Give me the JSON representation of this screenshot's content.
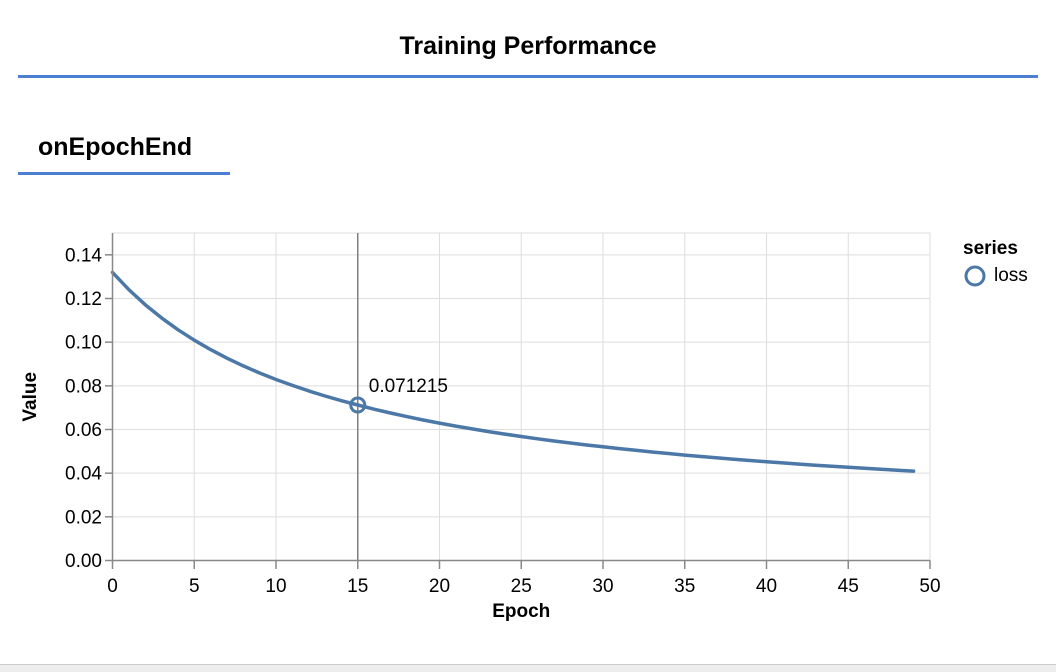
{
  "page": {
    "title": "Training Performance",
    "section_title": "onEpochEnd",
    "accent_color": "#4a7fd3"
  },
  "legend": {
    "title": "series",
    "items": [
      {
        "label": "loss",
        "color": "#4c78a8"
      }
    ]
  },
  "chart_data": {
    "type": "line",
    "xlabel": "Epoch",
    "ylabel": "Value",
    "xlim": [
      0,
      50
    ],
    "ylim": [
      0,
      0.15
    ],
    "x_ticks": [
      0,
      5,
      10,
      15,
      20,
      25,
      30,
      35,
      40,
      45,
      50
    ],
    "y_tick_labels": [
      "0.00",
      "0.02",
      "0.04",
      "0.06",
      "0.08",
      "0.10",
      "0.12",
      "0.14"
    ],
    "grid": true,
    "grid_color": "#dddddd",
    "axis_color": "#888888",
    "legend_position": "right",
    "series": [
      {
        "name": "loss",
        "color": "#4c78a8",
        "epochs": [
          0,
          1,
          2,
          3,
          4,
          5,
          6,
          7,
          8,
          9,
          10,
          11,
          12,
          13,
          14,
          15,
          16,
          17,
          18,
          19,
          20,
          21,
          22,
          23,
          24,
          25,
          26,
          27,
          28,
          29,
          30,
          31,
          32,
          33,
          34,
          35,
          36,
          37,
          38,
          39,
          40,
          41,
          42,
          43,
          44,
          45,
          46,
          47,
          48,
          49
        ],
        "values": [
          0.13197,
          0.124072,
          0.117177,
          0.111104,
          0.105715,
          0.100901,
          0.096574,
          0.092664,
          0.089113,
          0.085875,
          0.082908,
          0.080182,
          0.077667,
          0.07534,
          0.073181,
          0.071215,
          0.069298,
          0.067546,
          0.065904,
          0.064362,
          0.062912,
          0.061545,
          0.060255,
          0.059034,
          0.057879,
          0.056783,
          0.055742,
          0.054752,
          0.05381,
          0.052912,
          0.052054,
          0.051236,
          0.050452,
          0.049703,
          0.048985,
          0.048296,
          0.047635,
          0.047,
          0.046389,
          0.045802,
          0.045236,
          0.044691,
          0.044166,
          0.043659,
          0.04317,
          0.042697,
          0.042241,
          0.041799,
          0.041372,
          0.040958
        ]
      }
    ],
    "hover": {
      "epoch": 15,
      "value": 0.071215,
      "label": "0.071215",
      "rule_color": "#7f7f7f"
    }
  }
}
